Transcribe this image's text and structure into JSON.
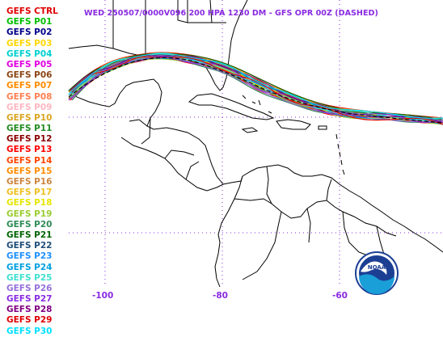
{
  "title": "WED 250507/0000V096  200 HPA 1230 DM - GFS OPR 00Z (DASHED)",
  "members": [
    {
      "name": "GEFS CTRL",
      "color": "#e00000"
    },
    {
      "name": "GEFS P01",
      "color": "#00c000"
    },
    {
      "name": "GEFS P02",
      "color": "#00008b"
    },
    {
      "name": "GEFS P03",
      "color": "#ffd700"
    },
    {
      "name": "GEFS P04",
      "color": "#00d0d0"
    },
    {
      "name": "GEFS P05",
      "color": "#e000e0"
    },
    {
      "name": "GEFS P06",
      "color": "#8b4513"
    },
    {
      "name": "GEFS P07",
      "color": "#ff8c00"
    },
    {
      "name": "GEFS P08",
      "color": "#ff7f50"
    },
    {
      "name": "GEFS P09",
      "color": "#ffb6c1"
    },
    {
      "name": "GEFS P10",
      "color": "#daa520"
    },
    {
      "name": "GEFS P11",
      "color": "#228b22"
    },
    {
      "name": "GEFS P12",
      "color": "#8b0000"
    },
    {
      "name": "GEFS P13",
      "color": "#ff0000"
    },
    {
      "name": "GEFS P14",
      "color": "#ff4500"
    },
    {
      "name": "GEFS P15",
      "color": "#ff8c00"
    },
    {
      "name": "GEFS P16",
      "color": "#cd853f"
    },
    {
      "name": "GEFS P17",
      "color": "#f0c020"
    },
    {
      "name": "GEFS P18",
      "color": "#e6e600"
    },
    {
      "name": "GEFS P19",
      "color": "#9acd32"
    },
    {
      "name": "GEFS P20",
      "color": "#2e8b57"
    },
    {
      "name": "GEFS P21",
      "color": "#006400"
    },
    {
      "name": "GEFS P22",
      "color": "#1f4e79"
    },
    {
      "name": "GEFS P23",
      "color": "#1e90ff"
    },
    {
      "name": "GEFS P24",
      "color": "#00a0e0"
    },
    {
      "name": "GEFS P25",
      "color": "#40e0d0"
    },
    {
      "name": "GEFS P26",
      "color": "#9370db"
    },
    {
      "name": "GEFS P27",
      "color": "#8a2be2"
    },
    {
      "name": "GEFS P28",
      "color": "#800080"
    },
    {
      "name": "GEFS P29",
      "color": "#e00000"
    },
    {
      "name": "GEFS P30",
      "color": "#00e0ff"
    }
  ],
  "lon_labels": [
    "-100",
    "-80",
    "-60"
  ],
  "logo_text": "NOAA"
}
